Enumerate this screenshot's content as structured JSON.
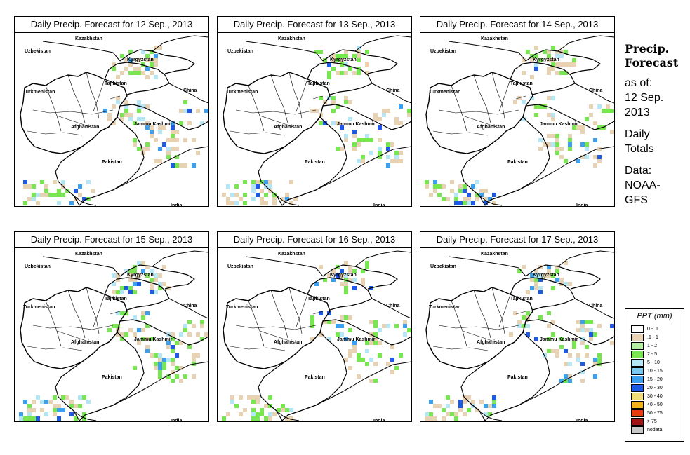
{
  "panels": [
    {
      "title": "Daily Precip. Forecast for  12 Sep., 2013"
    },
    {
      "title": "Daily Precip. Forecast for  13 Sep., 2013"
    },
    {
      "title": "Daily Precip. Forecast for  14 Sep., 2013"
    },
    {
      "title": "Daily Precip. Forecast for  15 Sep., 2013"
    },
    {
      "title": "Daily Precip. Forecast for  16 Sep., 2013"
    },
    {
      "title": "Daily Precip. Forecast for  17 Sep., 2013"
    }
  ],
  "map_labels": {
    "kazakhstan": "Kazakhstan",
    "uzbekistan": "Uzbekistan",
    "kyrgyzstan": "Kyrgyzstan",
    "tajikistan": "Tajikistan",
    "china": "China",
    "turkmenistan": "Turkmenistan",
    "afghanistan": "Afghanistan",
    "jammu_kashmir": "Jammu Kashmir",
    "pakistan": "Pakistan",
    "india": "India"
  },
  "side": {
    "heading_1": "Precip.",
    "heading_2": "Forecast",
    "as_of": "as of:",
    "date_1": "12 Sep.",
    "date_2": "2013",
    "daily": "Daily",
    "totals": "Totals",
    "data": "Data:",
    "source_1": "NOAA-",
    "source_2": "GFS"
  },
  "legend": {
    "title": "PPT (mm)",
    "items": [
      {
        "label": "0 - .1",
        "color": "#ffffff"
      },
      {
        "label": ".1 - 1",
        "color": "#e8d2b4"
      },
      {
        "label": "1 - 2",
        "color": "#b4f0a0"
      },
      {
        "label": "2 - 5",
        "color": "#78e650"
      },
      {
        "label": "5 - 10",
        "color": "#b4e6f5"
      },
      {
        "label": "10 - 15",
        "color": "#78c8f0"
      },
      {
        "label": "15 - 20",
        "color": "#3ca0f0"
      },
      {
        "label": "20 - 30",
        "color": "#1e5ae6"
      },
      {
        "label": "30 - 40",
        "color": "#f0dc78"
      },
      {
        "label": "40 - 50",
        "color": "#f0b41e"
      },
      {
        "label": "50 - 75",
        "color": "#e63c14"
      },
      {
        "label": "> 75",
        "color": "#a01414"
      },
      {
        "label": "nodata",
        "color": "#c8c8c8"
      }
    ]
  }
}
